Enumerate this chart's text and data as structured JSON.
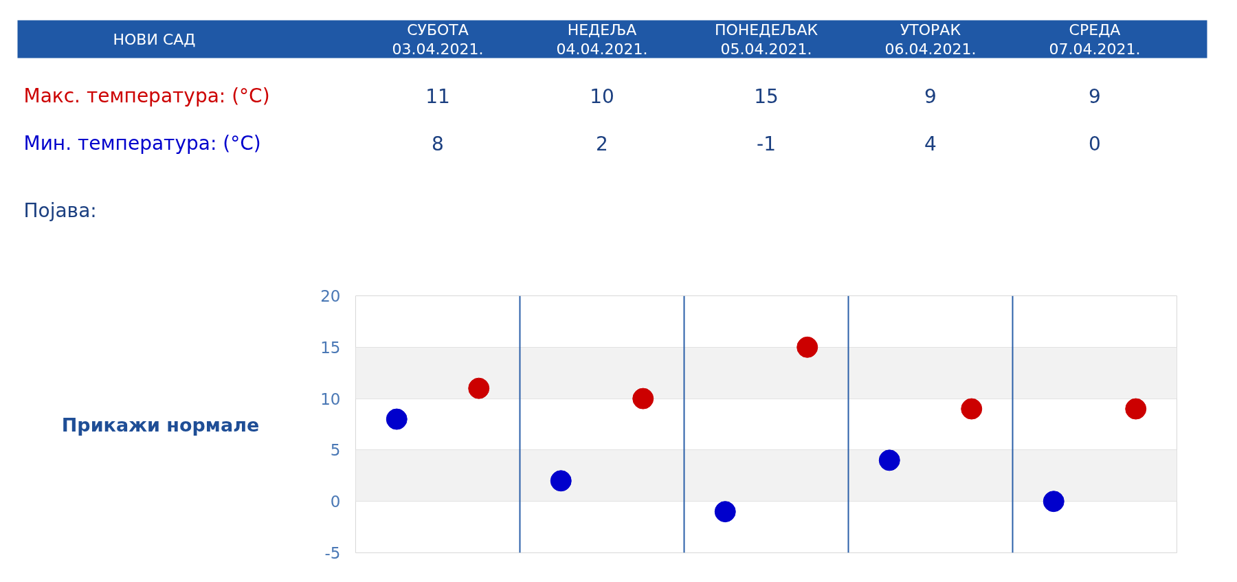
{
  "chart_data": {
    "type": "scatter",
    "title": "НОВИ САД",
    "categories": [
      null,
      null,
      null,
      null,
      null
    ],
    "series": [
      {
        "name": "Макс. температура: (°C)",
        "color": "#cc0000",
        "values": [
          11,
          10,
          15,
          9,
          9
        ]
      },
      {
        "name": "Мин. температура: (°C)",
        "color": "#0000cc",
        "values": [
          8,
          2,
          -1,
          4,
          0
        ]
      }
    ],
    "ylim": [
      -5,
      20
    ],
    "yticks": [
      -5,
      0,
      5,
      10,
      15,
      20
    ],
    "grid": true,
    "marker": "circle",
    "data_labels": true,
    "annotations": [
      "СУБОТА\n03.04.2021.",
      "НЕДЕЉА\n04.04.2021.",
      "ПОНЕДЕЉАК\n05.04.2021.",
      "УТОРАК\n06.04.2021.",
      "СРЕДА\n07.04.2021.",
      "Појава:",
      "Прикажи нормале"
    ]
  }
}
